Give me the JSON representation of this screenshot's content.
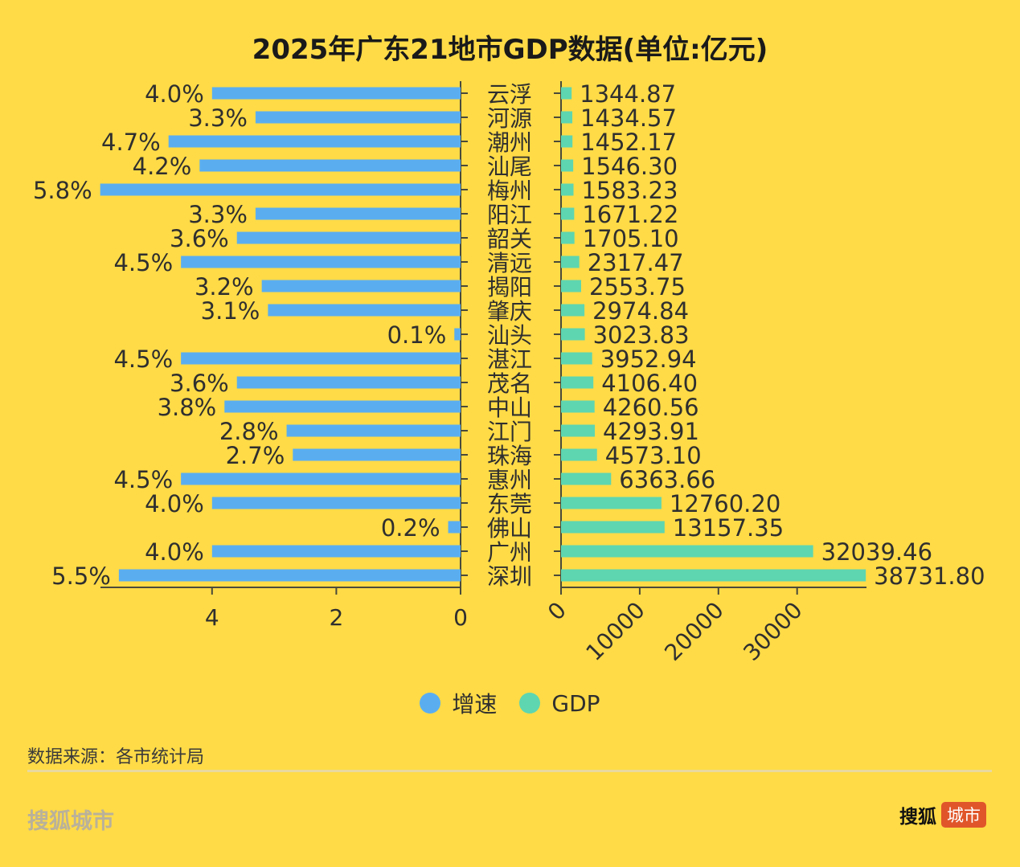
{
  "chart_data": {
    "type": "bar",
    "title": "2025年广东21地市GDP数据(单位:亿元)",
    "categories": [
      "云浮",
      "河源",
      "潮州",
      "汕尾",
      "梅州",
      "阳江",
      "韶关",
      "清远",
      "揭阳",
      "肇庆",
      "汕头",
      "湛江",
      "茂名",
      "中山",
      "江门",
      "珠海",
      "惠州",
      "东莞",
      "佛山",
      "广州",
      "深圳"
    ],
    "series": [
      {
        "name": "增速",
        "color": "#5AAEF0",
        "unit": "%",
        "values": [
          4.0,
          3.3,
          4.7,
          4.2,
          5.8,
          3.3,
          3.6,
          4.5,
          3.2,
          3.1,
          0.1,
          4.5,
          3.6,
          3.8,
          2.8,
          2.7,
          4.5,
          4.0,
          0.2,
          4.0,
          5.5
        ],
        "labels": [
          "4.0%",
          "3.3%",
          "4.7%",
          "4.2%",
          "5.8%",
          "3.3%",
          "3.6%",
          "4.5%",
          "3.2%",
          "3.1%",
          "0.1%",
          "4.5%",
          "3.6%",
          "3.8%",
          "2.8%",
          "2.7%",
          "4.5%",
          "4.0%",
          "0.2%",
          "4.0%",
          "5.5%"
        ],
        "axis": {
          "ticks": [
            "4",
            "2",
            "0"
          ],
          "tick_values": [
            4,
            2,
            0
          ],
          "range": [
            0,
            5.8
          ],
          "direction": "reversed"
        }
      },
      {
        "name": "GDP",
        "color": "#5ED6B0",
        "unit": "亿元",
        "values": [
          1344.87,
          1434.57,
          1452.17,
          1546.3,
          1583.23,
          1671.22,
          1705.1,
          2317.47,
          2553.75,
          2974.84,
          3023.83,
          3952.94,
          4106.4,
          4260.56,
          4293.91,
          4573.1,
          6363.66,
          12760.2,
          13157.35,
          32039.46,
          38731.8
        ],
        "labels": [
          "1344.87",
          "1434.57",
          "1452.17",
          "1546.30",
          "1583.23",
          "1671.22",
          "1705.10",
          "2317.47",
          "2553.75",
          "2974.84",
          "3023.83",
          "3952.94",
          "4106.40",
          "4260.56",
          "4293.91",
          "4573.10",
          "6363.66",
          "12760.20",
          "13157.35",
          "32039.46",
          "38731.80"
        ],
        "axis": {
          "ticks": [
            "0",
            "10000",
            "20000",
            "30000"
          ],
          "tick_values": [
            0,
            10000,
            20000,
            30000
          ],
          "range": [
            0,
            38731.8
          ]
        }
      }
    ],
    "legend": {
      "position": "bottom-center",
      "items": [
        {
          "label": "增速",
          "color": "#5AAEF0"
        },
        {
          "label": "GDP",
          "color": "#5ED6B0"
        }
      ]
    },
    "grid": false,
    "xlabel": "",
    "ylabel": ""
  },
  "footer": {
    "source": "数据来源：各市统计局",
    "brand_left": "搜狐城市",
    "brand_right_main": "搜狐",
    "brand_right_badge": "城市"
  },
  "colors": {
    "background": "#FFDB47",
    "badge": "#E0562A"
  }
}
